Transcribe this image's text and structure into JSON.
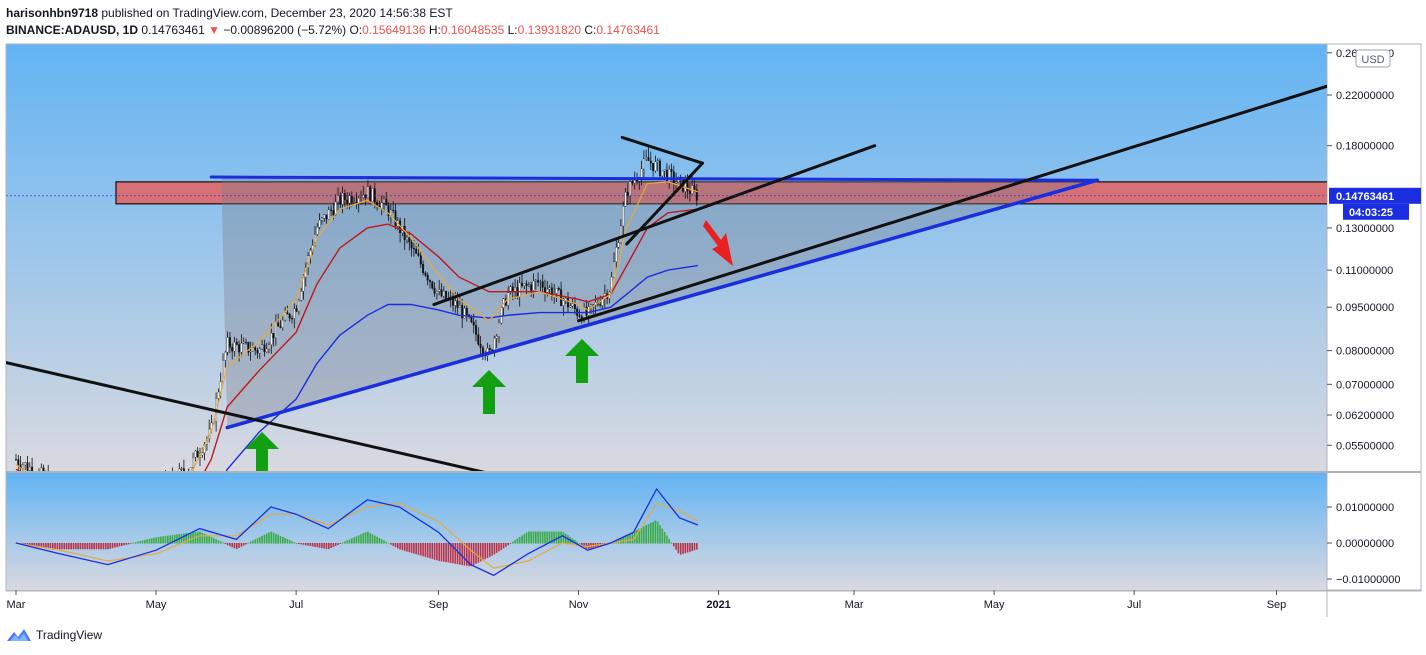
{
  "header": {
    "author": "harisonhbn9718",
    "published": " published on TradingView.com, December 23, 2020 14:56:38 EST",
    "symbol": "BINANCE:ADAUSD, 1D",
    "last": "0.14763461",
    "change": "−0.00896200 (−5.72%)",
    "o_label": "O:",
    "o_value": "0.15649136",
    "h_label": "H:",
    "h_value": "0.16048535",
    "l_label": "L:",
    "l_value": "0.13931820",
    "c_label": "C:",
    "c_value": "0.14763461"
  },
  "footer": {
    "brand": "TradingView"
  },
  "colors": {
    "sky_top": "#62b4f4",
    "sky_bottom": "#d9d9e0",
    "resistance_zone": "#e06868",
    "trend_blue": "#1a2ee0",
    "trend_black": "#111111",
    "ema_fast": "#e8a93c",
    "ema_mid": "#c01818",
    "ema_slow": "#1a2ee0",
    "price_tag": "#1a2ee0",
    "arrow_up": "#12a012",
    "arrow_down": "#e82020"
  },
  "chart_data": [
    {
      "type": "candlestick",
      "currency": "USD",
      "scale": "log",
      "y_ticks": [
        "0.26000000",
        "0.22000000",
        "0.18000000",
        "0.14763461",
        "0.13000000",
        "0.11000000",
        "0.09500000",
        "0.08000000",
        "0.07000000",
        "0.06200000",
        "0.05500000"
      ],
      "x_ticks": [
        "Mar",
        "May",
        "Jul",
        "Sep",
        "Nov",
        "2021",
        "Mar",
        "May",
        "Jul",
        "Sep"
      ],
      "last_price": "0.14763461",
      "countdown": "04:03:25",
      "price_series": {
        "dates": [
          "2020-03-01",
          "2020-03-15",
          "2020-04-01",
          "2020-04-15",
          "2020-05-01",
          "2020-05-15",
          "2020-05-25",
          "2020-06-01",
          "2020-06-15",
          "2020-07-01",
          "2020-07-10",
          "2020-07-20",
          "2020-08-01",
          "2020-08-10",
          "2020-08-20",
          "2020-09-01",
          "2020-09-10",
          "2020-09-23",
          "2020-10-01",
          "2020-10-15",
          "2020-11-01",
          "2020-11-05",
          "2020-11-15",
          "2020-11-22",
          "2020-12-01",
          "2020-12-10",
          "2020-12-23"
        ],
        "close": [
          0.052,
          0.048,
          0.036,
          0.034,
          0.046,
          0.05,
          0.058,
          0.082,
          0.08,
          0.095,
          0.13,
          0.145,
          0.15,
          0.14,
          0.12,
          0.1,
          0.095,
          0.078,
          0.1,
          0.105,
          0.093,
          0.092,
          0.103,
          0.15,
          0.17,
          0.16,
          0.1476
        ]
      },
      "ema_fast": [
        0.051,
        0.046,
        0.038,
        0.035,
        0.043,
        0.048,
        0.058,
        0.075,
        0.083,
        0.098,
        0.125,
        0.14,
        0.145,
        0.138,
        0.125,
        0.108,
        0.098,
        0.09,
        0.098,
        0.101,
        0.096,
        0.094,
        0.1,
        0.13,
        0.155,
        0.156,
        0.15
      ],
      "ema_mid": [
        0.05,
        0.047,
        0.04,
        0.036,
        0.04,
        0.044,
        0.052,
        0.064,
        0.074,
        0.086,
        0.104,
        0.12,
        0.13,
        0.132,
        0.127,
        0.116,
        0.107,
        0.101,
        0.101,
        0.101,
        0.098,
        0.097,
        0.1,
        0.112,
        0.13,
        0.138,
        0.14
      ],
      "ema_slow": [
        0.048,
        0.046,
        0.042,
        0.038,
        0.038,
        0.04,
        0.044,
        0.05,
        0.058,
        0.066,
        0.076,
        0.085,
        0.092,
        0.096,
        0.096,
        0.094,
        0.092,
        0.091,
        0.092,
        0.093,
        0.093,
        0.093,
        0.095,
        0.1,
        0.107,
        0.11,
        0.112
      ],
      "drawings": {
        "resistance_zone": [
          0.143,
          0.156
        ],
        "ascending_support": [
          [
            "2020-06-01",
            0.059
          ],
          [
            "2021-06-15",
            0.157
          ]
        ],
        "horizontal_resistance": [
          [
            "2020-05-25",
            0.159
          ],
          [
            "2021-06-15",
            0.157
          ]
        ],
        "long_black_trend": [
          [
            "2020-11-01",
            0.09
          ],
          [
            "2021-10-01",
            0.233
          ]
        ],
        "descending_trend": [
          [
            "2020-02-15",
            0.078
          ],
          [
            "2020-09-25",
            0.049
          ]
        ],
        "channel_top": [
          [
            "2020-08-30",
            0.096
          ],
          [
            "2021-03-10",
            0.18
          ]
        ],
        "pennant_top": [
          [
            "2020-11-20",
            0.186
          ],
          [
            "2020-12-25",
            0.168
          ]
        ],
        "pennant_bottom": [
          [
            "2020-11-22",
            0.122
          ],
          [
            "2020-12-25",
            0.168
          ]
        ]
      }
    },
    {
      "type": "macd",
      "y_ticks": [
        "0.01000000",
        "0.00000000",
        "−0.01000000"
      ],
      "dates": [
        "2020-03-01",
        "2020-03-20",
        "2020-04-10",
        "2020-05-01",
        "2020-05-20",
        "2020-06-05",
        "2020-06-20",
        "2020-07-01",
        "2020-07-15",
        "2020-08-01",
        "2020-08-15",
        "2020-09-01",
        "2020-09-15",
        "2020-09-25",
        "2020-10-10",
        "2020-10-25",
        "2020-11-05",
        "2020-11-15",
        "2020-11-25",
        "2020-12-05",
        "2020-12-15",
        "2020-12-23"
      ],
      "macd": [
        0.0,
        -0.003,
        -0.006,
        -0.002,
        0.004,
        0.001,
        0.01,
        0.008,
        0.004,
        0.012,
        0.01,
        0.003,
        -0.006,
        -0.009,
        -0.003,
        0.002,
        -0.002,
        0.0,
        0.003,
        0.015,
        0.007,
        0.005
      ],
      "signal": [
        0.0,
        -0.002,
        -0.005,
        -0.003,
        0.002,
        0.002,
        0.008,
        0.008,
        0.005,
        0.01,
        0.011,
        0.006,
        -0.002,
        -0.007,
        -0.005,
        0.0,
        -0.001,
        0.0,
        0.001,
        0.011,
        0.009,
        0.006
      ]
    }
  ]
}
